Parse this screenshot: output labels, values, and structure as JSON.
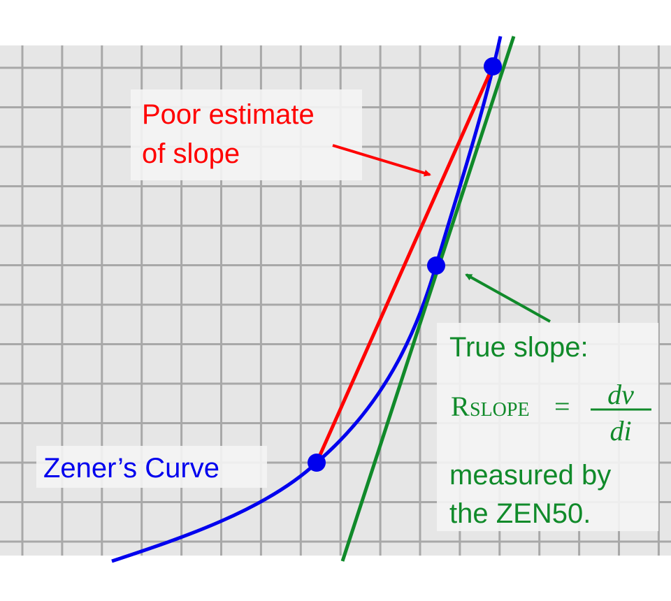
{
  "labels": {
    "poor_estimate": [
      "Poor estimate",
      "of slope"
    ],
    "zener_curve": "Zener’s Curve",
    "true_slope": {
      "heading": "True slope:",
      "r": "R",
      "subscript": "SLOPE",
      "equals": "=",
      "numerator": "dv",
      "denominator": "di",
      "lines": [
        "measured by",
        "the ZEN50."
      ]
    }
  }
}
